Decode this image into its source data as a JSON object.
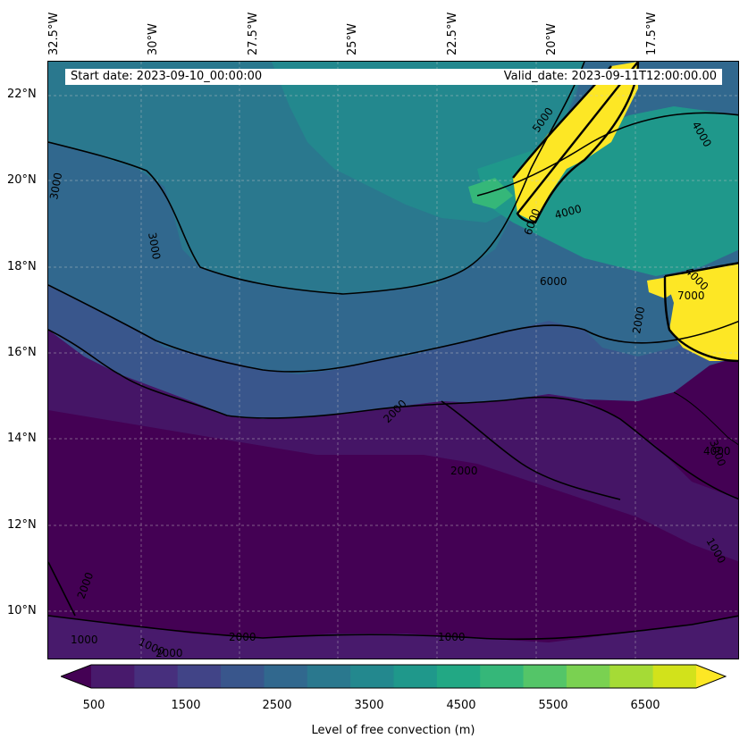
{
  "header": {
    "start_date": "Start date: 2023-09-10_00:00:00",
    "valid_date": "Valid_date: 2023-09-11T12:00:00.00"
  },
  "axes": {
    "lon_labels": [
      "32.5°W",
      "30°W",
      "27.5°W",
      "25°W",
      "22.5°W",
      "20°W",
      "17.5°W"
    ],
    "lat_labels": [
      "22°N",
      "20°N",
      "18°N",
      "16°N",
      "14°N",
      "12°N",
      "10°N"
    ]
  },
  "contour_labels": [
    "5000",
    "4000",
    "3000",
    "3000",
    "4000",
    "6000",
    "4000",
    "2000",
    "2000",
    "3000",
    "2000",
    "2000",
    "1000",
    "1000",
    "2000",
    "2000",
    "1000",
    "1000",
    "4000",
    "7000",
    "6000"
  ],
  "colorbar": {
    "ticks": [
      "500",
      "1500",
      "2500",
      "3500",
      "4500",
      "5500",
      "6500"
    ],
    "label": "Level of free convection (m)",
    "colors": [
      "#440154",
      "#481a6c",
      "#472f7d",
      "#414487",
      "#39568c",
      "#31688e",
      "#2a788e",
      "#23888e",
      "#1f988b",
      "#22a884",
      "#35b779",
      "#54c568",
      "#7ad151",
      "#a5db36",
      "#d2e21b",
      "#fde725"
    ]
  }
}
